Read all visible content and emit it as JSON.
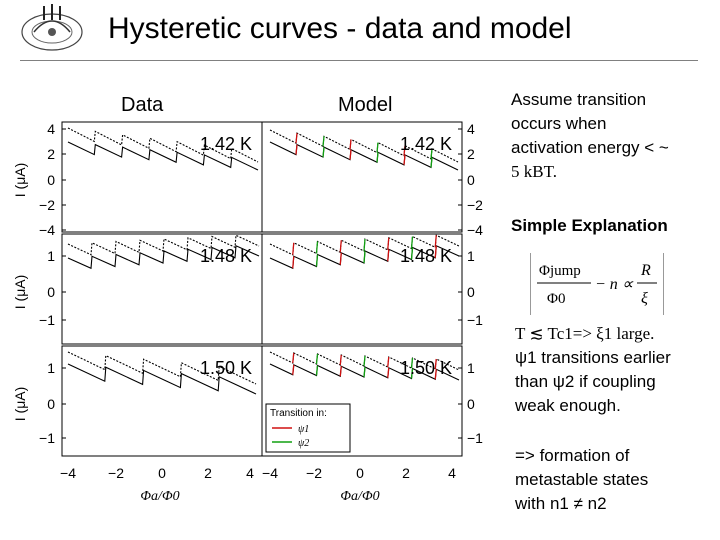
{
  "slide": {
    "title": "Hysteretic curves - data and model",
    "col_data": "Data",
    "col_model": "Model"
  },
  "panels": [
    {
      "temp": "1.42 K",
      "y_ticks_left": [
        "4",
        "2",
        "0",
        "−2",
        "−4"
      ],
      "y_ticks_right": [
        "4",
        "2",
        "0",
        "−2",
        "−4"
      ]
    },
    {
      "temp": "1.48 K",
      "y_ticks_left": [
        "1",
        "0",
        "−1"
      ],
      "y_ticks_right": [
        "1",
        "0",
        "−1"
      ]
    },
    {
      "temp": "1.50 K",
      "y_ticks_left": [
        "1",
        "0",
        "−1"
      ],
      "y_ticks_right": [
        "1",
        "0",
        "−1"
      ]
    }
  ],
  "axes": {
    "ylabel": "I (μA)",
    "xlabel_data": "Φa/Φ0",
    "xlabel_model": "Φa/Φ0",
    "x_ticks_data": [
      "−4",
      "−2",
      "0",
      "2",
      "4"
    ],
    "x_ticks_model": [
      "−4",
      "−2",
      "0",
      "2",
      "4"
    ]
  },
  "legend": {
    "title": "Transition in:",
    "item1": "ψ1",
    "item2": "ψ2",
    "color1": "#d01010",
    "color2": "#10a010"
  },
  "notes": {
    "assume_1": "Assume transition",
    "assume_2": "occurs when",
    "assume_3": "activation energy < ~",
    "assume_4": "5 kBT.",
    "simple": "Simple Explanation",
    "t_line": "T ≲ Tc1=> ξ1 large.",
    "psi_1": "ψ1 transitions earlier",
    "psi_2": "than ψ2 if coupling",
    "psi_3": "weak enough.",
    "meta_1": "=> formation of",
    "meta_2": "metastable states",
    "meta_3": "with n1 ≠ n2"
  },
  "formula": {
    "lhs_num": "Φjump",
    "lhs_den": "Φ0",
    "minus_n": "− n ∝",
    "rhs_num": "R",
    "rhs_den": "ξ"
  }
}
